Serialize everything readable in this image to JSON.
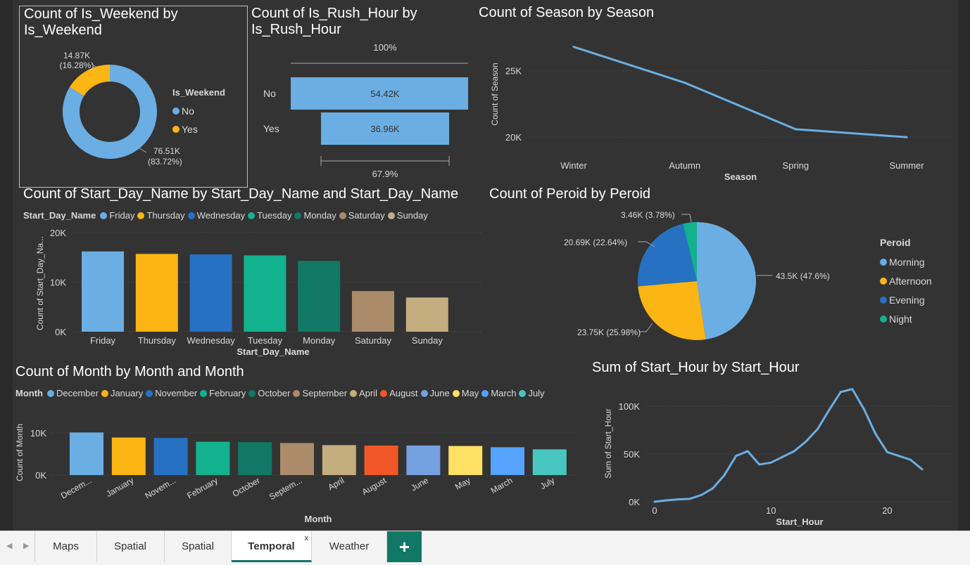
{
  "colors": {
    "background": "#333333",
    "primary_blue": "#6aaee3",
    "yellow": "#fbb514",
    "dark_blue": "#2771c2",
    "teal": "#12b28f",
    "dark_teal": "#117865",
    "brown": "#ac8b6b",
    "tan": "#c4ad7f",
    "orange_red": "#f15727",
    "soft_blue": "#76a1e0",
    "light_yellow": "#fde064",
    "bright_blue": "#55a3fd",
    "aqua": "#47c7c0",
    "text": "#d9d9d9",
    "tab_accent": "#117865"
  },
  "visuals": {
    "weekend": {
      "title": "Count of Is_Weekend by Is_Weekend",
      "title_line1": "Count of Is_Weekend by",
      "title_line2": "Is_Weekend",
      "legend_title": "Is_Weekend",
      "legend": [
        "No",
        "Yes"
      ],
      "label_yes_value": "14.87K",
      "label_yes_pct": "(16.28%)",
      "label_no_value": "76.51K",
      "label_no_pct": "(83.72%)"
    },
    "rush": {
      "title_line1": "Count of Is_Rush_Hour by",
      "title_line2": "Is_Rush_Hour",
      "top_pct": "100%",
      "bottom_pct": "67.9%",
      "categories": [
        "No",
        "Yes"
      ],
      "labels": [
        "54.42K",
        "36.96K"
      ]
    },
    "season": {
      "title": "Count of Season by Season",
      "ylabel": "Count of Season",
      "xlabel": "Season",
      "yticks": [
        "25K",
        "20K"
      ],
      "categories": [
        "Winter",
        "Autumn",
        "Spring",
        "Summer"
      ]
    },
    "day": {
      "title": "Count of Start_Day_Name by Start_Day_Name and Start_Day_Name",
      "legend_title": "Start_Day_Name",
      "ylabel": "Count of Start_Day_Na...",
      "xlabel": "Start_Day_Name",
      "yticks": [
        "20K",
        "10K",
        "0K"
      ],
      "categories": [
        "Friday",
        "Thursday",
        "Wednesday",
        "Tuesday",
        "Monday",
        "Saturday",
        "Sunday"
      ]
    },
    "period": {
      "title": "Count of Peroid by Peroid",
      "legend_title": "Peroid",
      "legend": [
        "Morning",
        "Afternoon",
        "Evening",
        "Night"
      ],
      "labels": {
        "morning": "43.5K (47.6%)",
        "afternoon": "23.75K (25.98%)",
        "evening": "20.69K (22.64%)",
        "night": "3.46K (3.78%)"
      }
    },
    "month": {
      "title": "Count of Month by Month and Month",
      "legend_title": "Month",
      "legend": [
        "December",
        "January",
        "November",
        "February",
        "October",
        "September",
        "April",
        "August",
        "June",
        "May",
        "March",
        "July"
      ],
      "ylabel": "Count of Month",
      "xlabel": "Month",
      "yticks": [
        "10K",
        "0K"
      ],
      "tick_labels": [
        "Decem...",
        "January",
        "Novem...",
        "February",
        "October",
        "Septem...",
        "April",
        "August",
        "June",
        "May",
        "March",
        "July"
      ]
    },
    "hour": {
      "title": "Sum of Start_Hour by Start_Hour",
      "ylabel": "Sum of Start_Hour",
      "xlabel": "Start_Hour",
      "yticks": [
        "100K",
        "50K",
        "0K"
      ],
      "xticks": [
        "0",
        "10",
        "20"
      ]
    }
  },
  "chart_data": [
    {
      "type": "pie",
      "title": "Count of Is_Weekend by Is_Weekend",
      "donut": true,
      "categories": [
        "No",
        "Yes"
      ],
      "values": [
        76510,
        14870
      ],
      "percent": [
        83.72,
        16.28
      ],
      "legend_position": "right"
    },
    {
      "type": "bar",
      "title": "Count of Is_Rush_Hour by Is_Rush_Hour",
      "orientation": "funnel",
      "categories": [
        "No",
        "Yes"
      ],
      "values": [
        54420,
        36960
      ],
      "conversion": [
        "100%",
        "67.9%"
      ]
    },
    {
      "type": "line",
      "title": "Count of Season by Season",
      "xlabel": "Season",
      "ylabel": "Count of Season",
      "categories": [
        "Winter",
        "Autumn",
        "Spring",
        "Summer"
      ],
      "values": [
        26800,
        24100,
        20600,
        20000
      ],
      "ylim": [
        18000,
        28000
      ],
      "grid": true
    },
    {
      "type": "bar",
      "title": "Count of Start_Day_Name by Start_Day_Name and Start_Day_Name",
      "xlabel": "Start_Day_Name",
      "ylabel": "Count of Start_Day_Na...",
      "categories": [
        "Friday",
        "Thursday",
        "Wednesday",
        "Tuesday",
        "Monday",
        "Saturday",
        "Sunday"
      ],
      "values": [
        16200,
        15700,
        15600,
        15400,
        14300,
        8200,
        6900
      ],
      "ylim": [
        0,
        20000
      ],
      "legend_position": "top"
    },
    {
      "type": "pie",
      "title": "Count of Peroid by Peroid",
      "categories": [
        "Morning",
        "Afternoon",
        "Evening",
        "Night"
      ],
      "values": [
        43500,
        23750,
        20690,
        3460
      ],
      "percent": [
        47.6,
        25.98,
        22.64,
        3.78
      ],
      "legend_position": "right"
    },
    {
      "type": "bar",
      "title": "Count of Month by Month and Month",
      "xlabel": "Month",
      "ylabel": "Count of Month",
      "categories": [
        "December",
        "January",
        "November",
        "February",
        "October",
        "September",
        "April",
        "August",
        "June",
        "May",
        "March",
        "July"
      ],
      "values": [
        10100,
        8900,
        8800,
        7900,
        7800,
        7600,
        7100,
        7000,
        7000,
        6900,
        6600,
        6100
      ],
      "ylim": [
        0,
        10000
      ],
      "legend_position": "top"
    },
    {
      "type": "line",
      "title": "Sum of Start_Hour by Start_Hour",
      "xlabel": "Start_Hour",
      "ylabel": "Sum of Start_Hour",
      "x": [
        0,
        1,
        2,
        3,
        4,
        5,
        6,
        7,
        8,
        9,
        10,
        11,
        12,
        13,
        14,
        15,
        16,
        17,
        18,
        19,
        20,
        21,
        22,
        23
      ],
      "values": [
        0,
        1500,
        2500,
        3000,
        7000,
        14000,
        28000,
        48000,
        53000,
        39000,
        41000,
        47000,
        53000,
        63000,
        76000,
        96000,
        115000,
        118000,
        97000,
        71000,
        52000,
        48000,
        44000,
        34000
      ],
      "ylim": [
        0,
        120000
      ],
      "grid": true
    }
  ],
  "tabs": {
    "items": [
      "Maps",
      "Spatial",
      "Spatial",
      "Temporal",
      "Weather"
    ],
    "active": "Temporal",
    "close_glyph": "x",
    "add_glyph": "+"
  }
}
